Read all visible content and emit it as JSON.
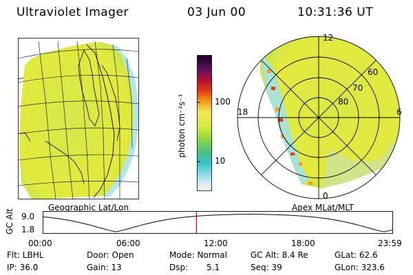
{
  "header": {
    "instrument": "Ultraviolet Imager",
    "date": "03 Jun 00",
    "time": "10:31:36 UT"
  },
  "colorbar": {
    "unit_label": "photon cm⁻²s⁻¹",
    "tick_100": "100",
    "tick_10": "10"
  },
  "geo_panel": {
    "caption": "Geographic Lat/Lon"
  },
  "polar_panel": {
    "caption": "Apex MLat/MLT",
    "mlt_12": "12",
    "mlt_18": "18",
    "mlt_6": "6",
    "mlt_0": "0",
    "lat_60": "60",
    "lat_70": "70",
    "lat_80": "80"
  },
  "altitude_plot": {
    "axis_title": "GC Alt",
    "y_high": "9.0",
    "y_low": "1.8",
    "x_ticks": [
      "00:00",
      "06:00",
      "12:00",
      "18:00",
      "23:59"
    ],
    "current_marker_hour": 10.53,
    "cursor_color": "#e00000"
  },
  "stats": {
    "filter": "Flt: LBHL",
    "ip": "IP: 36.0",
    "door": "Door: Open",
    "gain": "Gain: 13",
    "mode": "Mode: Normal",
    "dsp_label": "Dsp:",
    "dsp_value": "5.1",
    "gc_alt": "GC Alt: 8.4 Re",
    "seq": "Seq: 39",
    "glat": "GLat: 62.6",
    "glon": "GLon: 323.6"
  },
  "colors": {
    "aurora_fill": "#dfe840",
    "aurora_cool": "#9fdc5a",
    "edge_cyan": "#9fe2ec",
    "spot_red": "#e23a10",
    "spot_orange": "#f0a020"
  }
}
